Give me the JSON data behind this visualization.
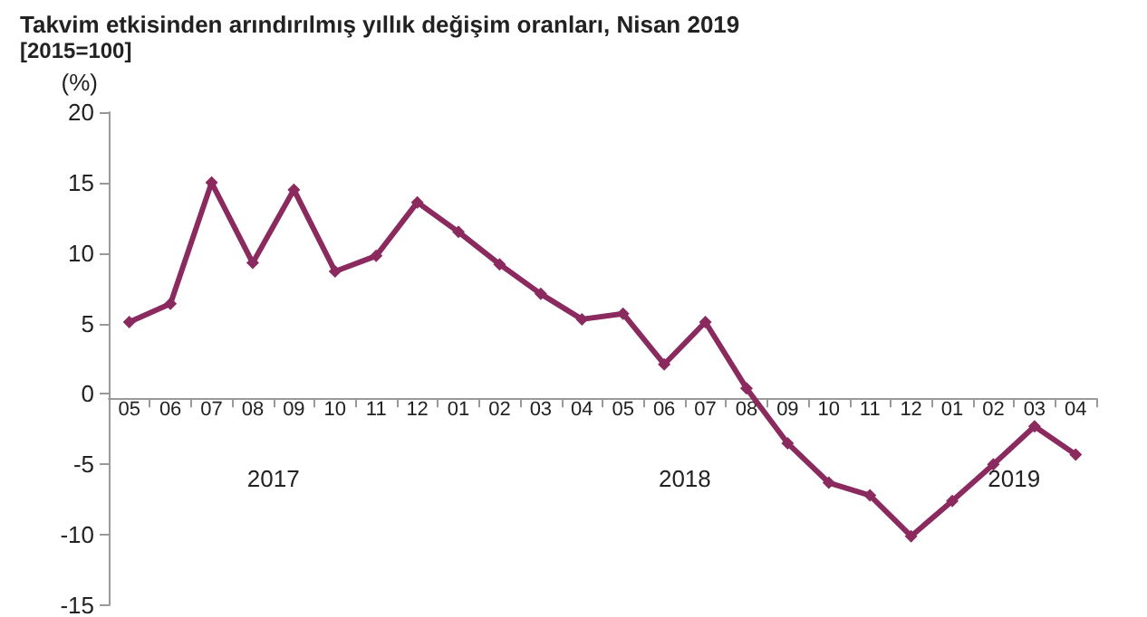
{
  "chart_data": {
    "type": "line",
    "title": "Takvim etkisinden arındırılmış yıllık değişim oranları, Nisan 2019",
    "subtitle": "[2015=100]",
    "ylabel": "(%)",
    "categories": [
      "05",
      "06",
      "07",
      "08",
      "09",
      "10",
      "11",
      "12",
      "01",
      "02",
      "03",
      "04",
      "05",
      "06",
      "07",
      "08",
      "09",
      "10",
      "11",
      "12",
      "01",
      "02",
      "03",
      "04"
    ],
    "series": [
      {
        "color": "#8b2a5e",
        "values": [
          5.1,
          6.4,
          15.0,
          9.3,
          14.5,
          8.7,
          9.8,
          13.6,
          11.5,
          9.2,
          7.1,
          5.3,
          5.7,
          2.1,
          5.1,
          0.4,
          -3.5,
          -6.3,
          -7.2,
          -10.1,
          -7.6,
          -5.0,
          -2.3,
          -4.3
        ]
      }
    ],
    "annotations": [
      "2017",
      "2018",
      "2019"
    ],
    "ylim": [
      -15,
      20
    ],
    "yticks": [
      -15,
      -10,
      -5,
      0,
      5,
      10,
      15,
      20
    ],
    "grid": false,
    "marker": "diamond",
    "line_style": "solid"
  }
}
